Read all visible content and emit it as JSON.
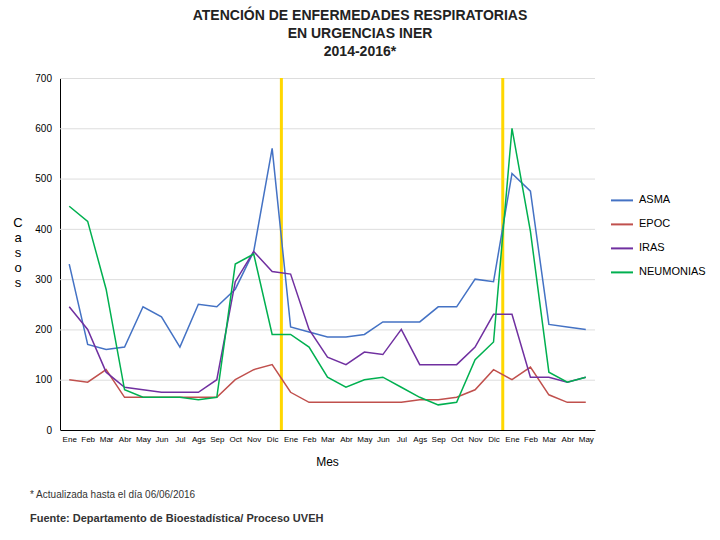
{
  "chart_data": {
    "type": "line",
    "title": [
      "ATENCIÓN DE ENFERMEDADES RESPIRATORIAS",
      "EN URGENCIAS INER",
      "2014-2016*"
    ],
    "x_label": "Mes",
    "y_label": "Casos",
    "categories": [
      "Ene",
      "Feb",
      "Mar",
      "Abr",
      "May",
      "Jun",
      "Jul",
      "Ags",
      "Sep",
      "Oct",
      "Nov",
      "Dic",
      "Ene",
      "Feb",
      "Mar",
      "Abr",
      "May",
      "Jun",
      "Jul",
      "Ags",
      "Sep",
      "Oct",
      "Nov",
      "Dic",
      "Ene",
      "Feb",
      "Mar",
      "Abr",
      "May"
    ],
    "series": [
      {
        "name": "ASMA",
        "color": "#4472C4",
        "values": [
          330,
          170,
          160,
          165,
          245,
          225,
          165,
          250,
          245,
          280,
          355,
          560,
          205,
          195,
          185,
          185,
          190,
          215,
          215,
          215,
          245,
          245,
          300,
          295,
          510,
          475,
          210,
          205,
          200
        ]
      },
      {
        "name": "EPOC",
        "color": "#C0504D",
        "values": [
          100,
          95,
          120,
          65,
          65,
          65,
          65,
          65,
          65,
          100,
          120,
          130,
          75,
          55,
          55,
          55,
          55,
          55,
          55,
          60,
          60,
          65,
          80,
          120,
          100,
          125,
          70,
          55,
          55
        ]
      },
      {
        "name": "IRAS",
        "color": "#7030A0",
        "values": [
          245,
          200,
          115,
          85,
          80,
          75,
          75,
          75,
          100,
          295,
          355,
          315,
          310,
          200,
          145,
          130,
          155,
          150,
          200,
          130,
          130,
          130,
          165,
          230,
          230,
          105,
          105,
          95,
          105
        ]
      },
      {
        "name": "NEUMONIAS",
        "color": "#00B050",
        "values": [
          445,
          415,
          280,
          80,
          65,
          65,
          65,
          60,
          65,
          330,
          350,
          190,
          190,
          165,
          105,
          85,
          100,
          105,
          85,
          65,
          50,
          55,
          140,
          175,
          600,
          395,
          115,
          95,
          105
        ]
      }
    ],
    "annotations": [
      {
        "type": "vline",
        "x": 11.5,
        "color": "#FFD700"
      },
      {
        "type": "vline",
        "x": 23.5,
        "color": "#FFD700"
      }
    ],
    "footnotes": [
      "* Actualizada hasta el día 06/06/2016",
      "Fuente: Departamento de Bioestadística/ Proceso UVEH"
    ],
    "ylim": [
      0,
      700
    ],
    "yticks": [
      0,
      100,
      200,
      300,
      400,
      500,
      600,
      700
    ],
    "grid": true,
    "legend": "right"
  }
}
